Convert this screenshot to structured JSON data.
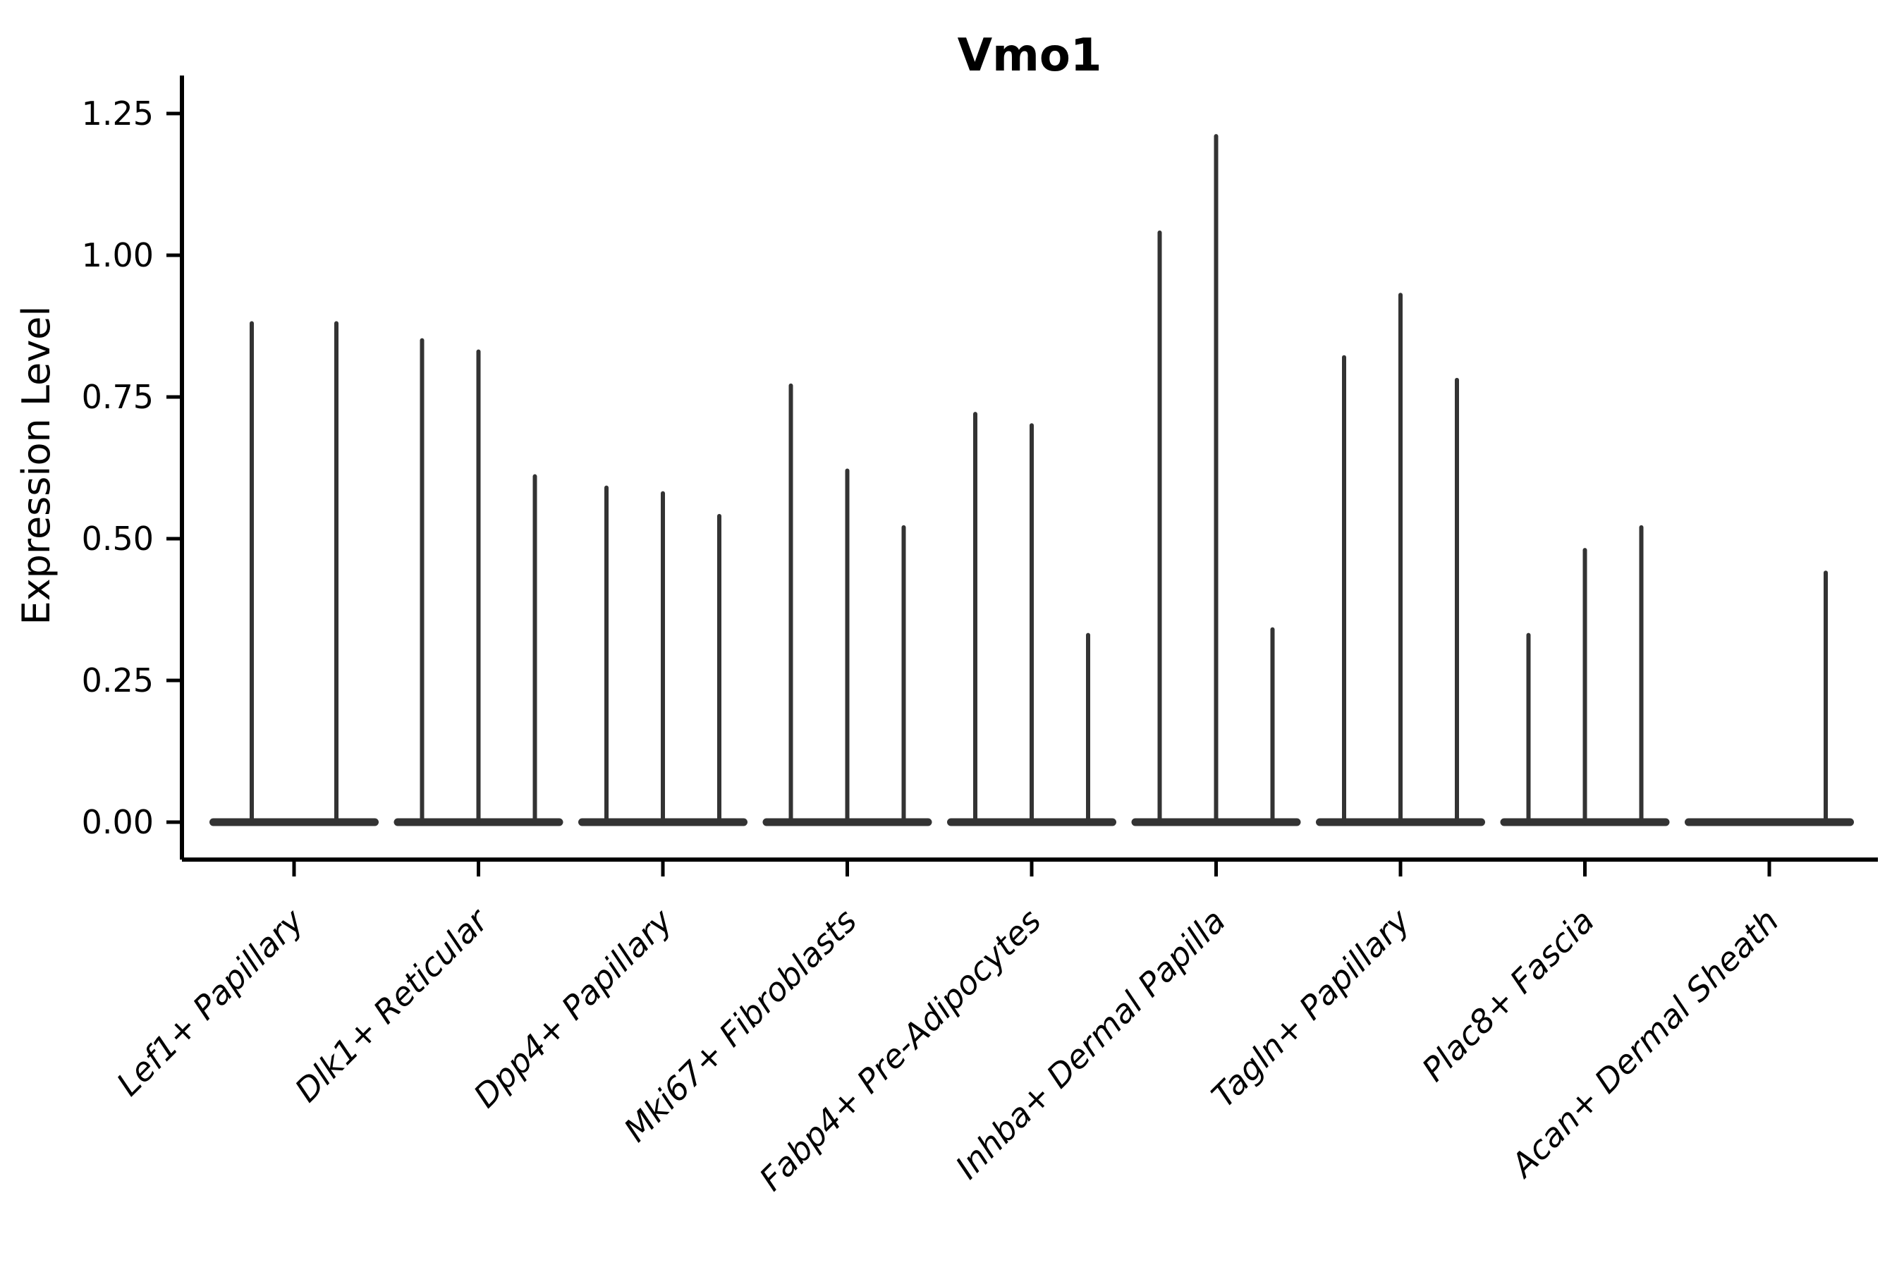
{
  "title": "Vmo1",
  "chart_data": {
    "type": "violin",
    "title": "Vmo1",
    "xlabel": "",
    "ylabel": "Expression Level",
    "ylim": [
      -0.066,
      1.317
    ],
    "grid": false,
    "legend": "none",
    "ytick_values": [
      0.0,
      0.25,
      0.5,
      0.75,
      1.0,
      1.25
    ],
    "ytick_labels": [
      "0.00",
      "0.25",
      "0.50",
      "0.75",
      "1.00",
      "1.25"
    ],
    "description": "Violin plot of Vmo1 expression; most cells at 0, thin density spikes reach each violin's maximum expression value",
    "categories": [
      "Lef1+ Papillary",
      "Dlk1+ Reticular",
      "Dpp4+ Papillary",
      "Mki67+ Fibroblasts",
      "Fabp4+ Pre-Adipocytes",
      "Inhba+ Dermal Papilla",
      "Tagln+ Papillary",
      "Plac8+ Fascia",
      "Acan+ Dermal Sheath"
    ],
    "groups": [
      {
        "label": "Lef1+ Papillary",
        "violin_max": [
          0.88,
          0.88
        ]
      },
      {
        "label": "Dlk1+ Reticular",
        "violin_max": [
          0.85,
          0.83,
          0.61
        ]
      },
      {
        "label": "Dpp4+ Papillary",
        "violin_max": [
          0.59,
          0.58,
          0.54
        ]
      },
      {
        "label": "Mki67+ Fibroblasts",
        "violin_max": [
          0.77,
          0.62,
          0.52
        ]
      },
      {
        "label": "Fabp4+ Pre-Adipocytes",
        "violin_max": [
          0.72,
          0.7,
          0.33
        ]
      },
      {
        "label": "Inhba+ Dermal Papilla",
        "violin_max": [
          1.04,
          1.21,
          0.34
        ]
      },
      {
        "label": "Tagln+ Papillary",
        "violin_max": [
          0.82,
          0.93,
          0.78
        ]
      },
      {
        "label": "Plac8+ Fascia",
        "violin_max": [
          0.33,
          0.48,
          0.52
        ]
      },
      {
        "label": "Acan+ Dermal Sheath",
        "violin_max": [
          0.0,
          0.0,
          0.44
        ]
      }
    ],
    "colors": {
      "violin": "#333333",
      "axis": "#000000",
      "text": "#000000",
      "background": "#ffffff"
    }
  }
}
